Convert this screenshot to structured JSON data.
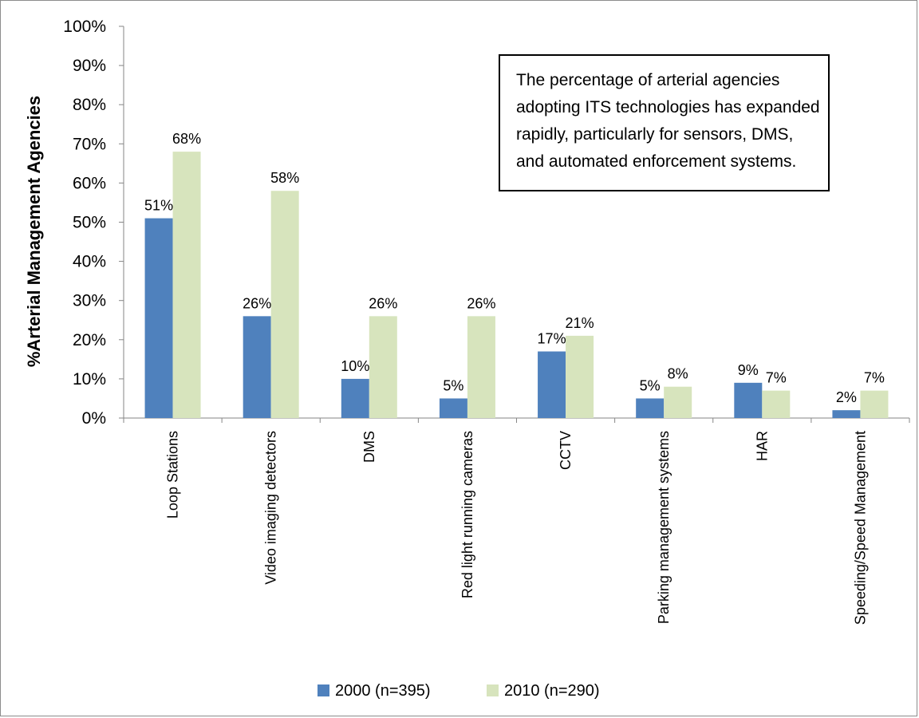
{
  "chart_data": {
    "type": "bar",
    "ylabel": "%Arterial Management Agencies",
    "xlabel": "",
    "ylim": [
      0,
      100
    ],
    "yticks": [
      "0%",
      "10%",
      "20%",
      "30%",
      "40%",
      "50%",
      "60%",
      "70%",
      "80%",
      "90%",
      "100%"
    ],
    "grid": false,
    "legend_position": "bottom",
    "categories": [
      "Loop Stations",
      "Video imaging detectors",
      "DMS",
      "Red light running cameras",
      "CCTV",
      "Parking management systems",
      "HAR",
      "Speeding/Speed Management"
    ],
    "series": [
      {
        "name": "2000 (n=395)",
        "color": "#4f81bd",
        "values": [
          51,
          26,
          10,
          5,
          17,
          5,
          9,
          2
        ],
        "labels": [
          "51%",
          "26%",
          "10%",
          "5%",
          "17%",
          "5%",
          "9%",
          "2%"
        ]
      },
      {
        "name": "2010 (n=290)",
        "color": "#d7e4bd",
        "values": [
          68,
          58,
          26,
          26,
          21,
          8,
          7,
          7
        ],
        "labels": [
          "68%",
          "58%",
          "26%",
          "26%",
          "21%",
          "8%",
          "7%",
          "7%"
        ]
      }
    ],
    "annotation": "The percentage of arterial agencies adopting ITS technologies has expanded rapidly, particularly for sensors, DMS, and automated enforcement systems."
  }
}
